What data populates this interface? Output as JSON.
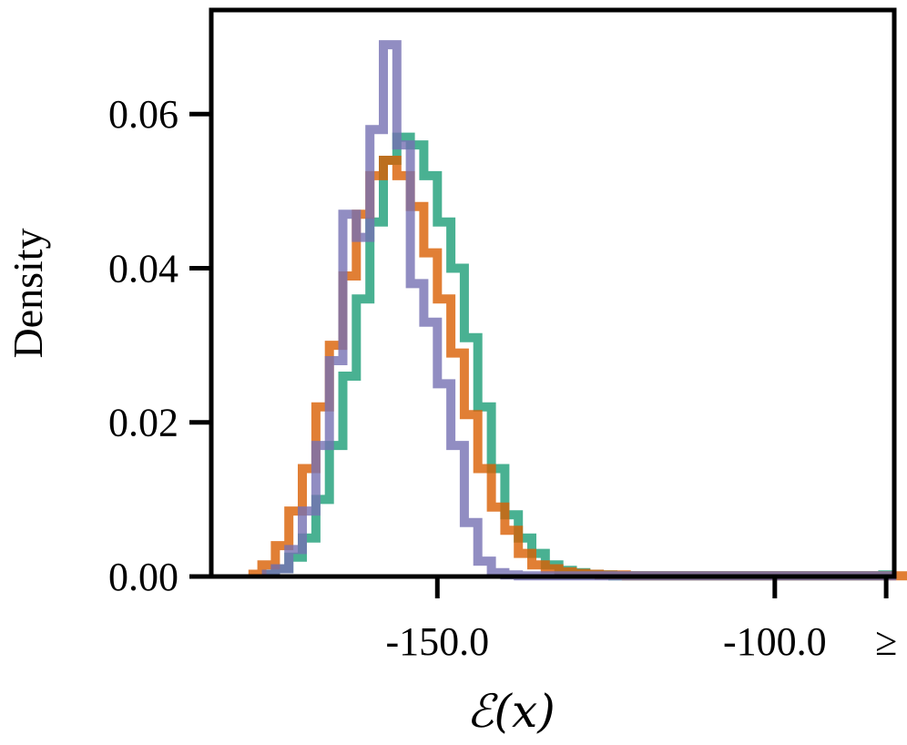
{
  "chart_data": {
    "type": "histogram",
    "xlabel": "ℰ(x)",
    "ylabel": "Density",
    "ylim": [
      0,
      0.0735
    ],
    "xlim": [
      -183.5,
      -82.3
    ],
    "bin_width": 2,
    "overflow_label": "≥",
    "xticks": [
      {
        "value": -150,
        "label": "-150.0"
      },
      {
        "value": -100,
        "label": "-100.0"
      },
      {
        "value": -83.5,
        "label": "≥"
      }
    ],
    "yticks": [
      {
        "value": 0,
        "label": "0.00"
      },
      {
        "value": 0.02,
        "label": "0.02"
      },
      {
        "value": 0.04,
        "label": "0.04"
      },
      {
        "value": 0.06,
        "label": "0.06"
      }
    ],
    "series": [
      {
        "color": "#1b9e77",
        "bin_start": -176,
        "densities": [
          0.0003,
          0.001,
          0.0025,
          0.005,
          0.01,
          0.017,
          0.026,
          0.036,
          0.046,
          0.054,
          0.057,
          0.056,
          0.052,
          0.046,
          0.04,
          0.031,
          0.022,
          0.014,
          0.008,
          0.005,
          0.003,
          0.0015,
          0.0008,
          0.0005,
          0.0003,
          0.0002,
          0.0001,
          0.0001,
          0.0001,
          0.0001,
          0.0001,
          0.0001,
          0.0001,
          0.0001,
          0.0001,
          0.0001,
          0.0001,
          0.0001,
          0.0001,
          0.0001,
          0.0001,
          0.0001,
          0.0001,
          0.0001,
          0.0001,
          0.0001,
          0.0002
        ]
      },
      {
        "color": "#d95f02",
        "bin_start": -178,
        "densities": [
          0.0003,
          0.0015,
          0.004,
          0.0085,
          0.014,
          0.022,
          0.03,
          0.039,
          0.047,
          0.052,
          0.054,
          0.052,
          0.048,
          0.042,
          0.036,
          0.029,
          0.021,
          0.014,
          0.009,
          0.006,
          0.003,
          0.0015,
          0.001,
          0.0006,
          0.0004,
          0.0003,
          0.0002,
          0.0002,
          0.0001,
          0.0001,
          0.0001,
          0.0001,
          0.0001,
          0.0001,
          0.0001,
          0.0001,
          0.0001,
          0.0001,
          0.0001,
          0.0001,
          0.0001,
          0.0001,
          0.0001,
          0.0001,
          0.0001,
          0.0001,
          0.0001,
          0.0001,
          0.0001
        ]
      },
      {
        "color": "#7570b3",
        "bin_start": -176,
        "densities": [
          0.0003,
          0.001,
          0.0035,
          0.0085,
          0.017,
          0.028,
          0.047,
          0.044,
          0.058,
          0.069,
          0.056,
          0.038,
          0.033,
          0.025,
          0.017,
          0.007,
          0.002,
          0.0005,
          0.0002,
          0.0001,
          0.0001,
          0.0001,
          0.0001,
          0.0001,
          0.0001,
          0.0001,
          0.0001,
          0.0001,
          0.0001,
          0.0001,
          0.0001,
          0.0001,
          0.0001,
          0.0001,
          0.0001,
          0.0001,
          0.0001,
          0.0001,
          0.0001,
          0.0001,
          0.0001,
          0.0001,
          0.0001,
          0.0001,
          0.0001,
          0.0001,
          0.0001
        ]
      }
    ]
  }
}
